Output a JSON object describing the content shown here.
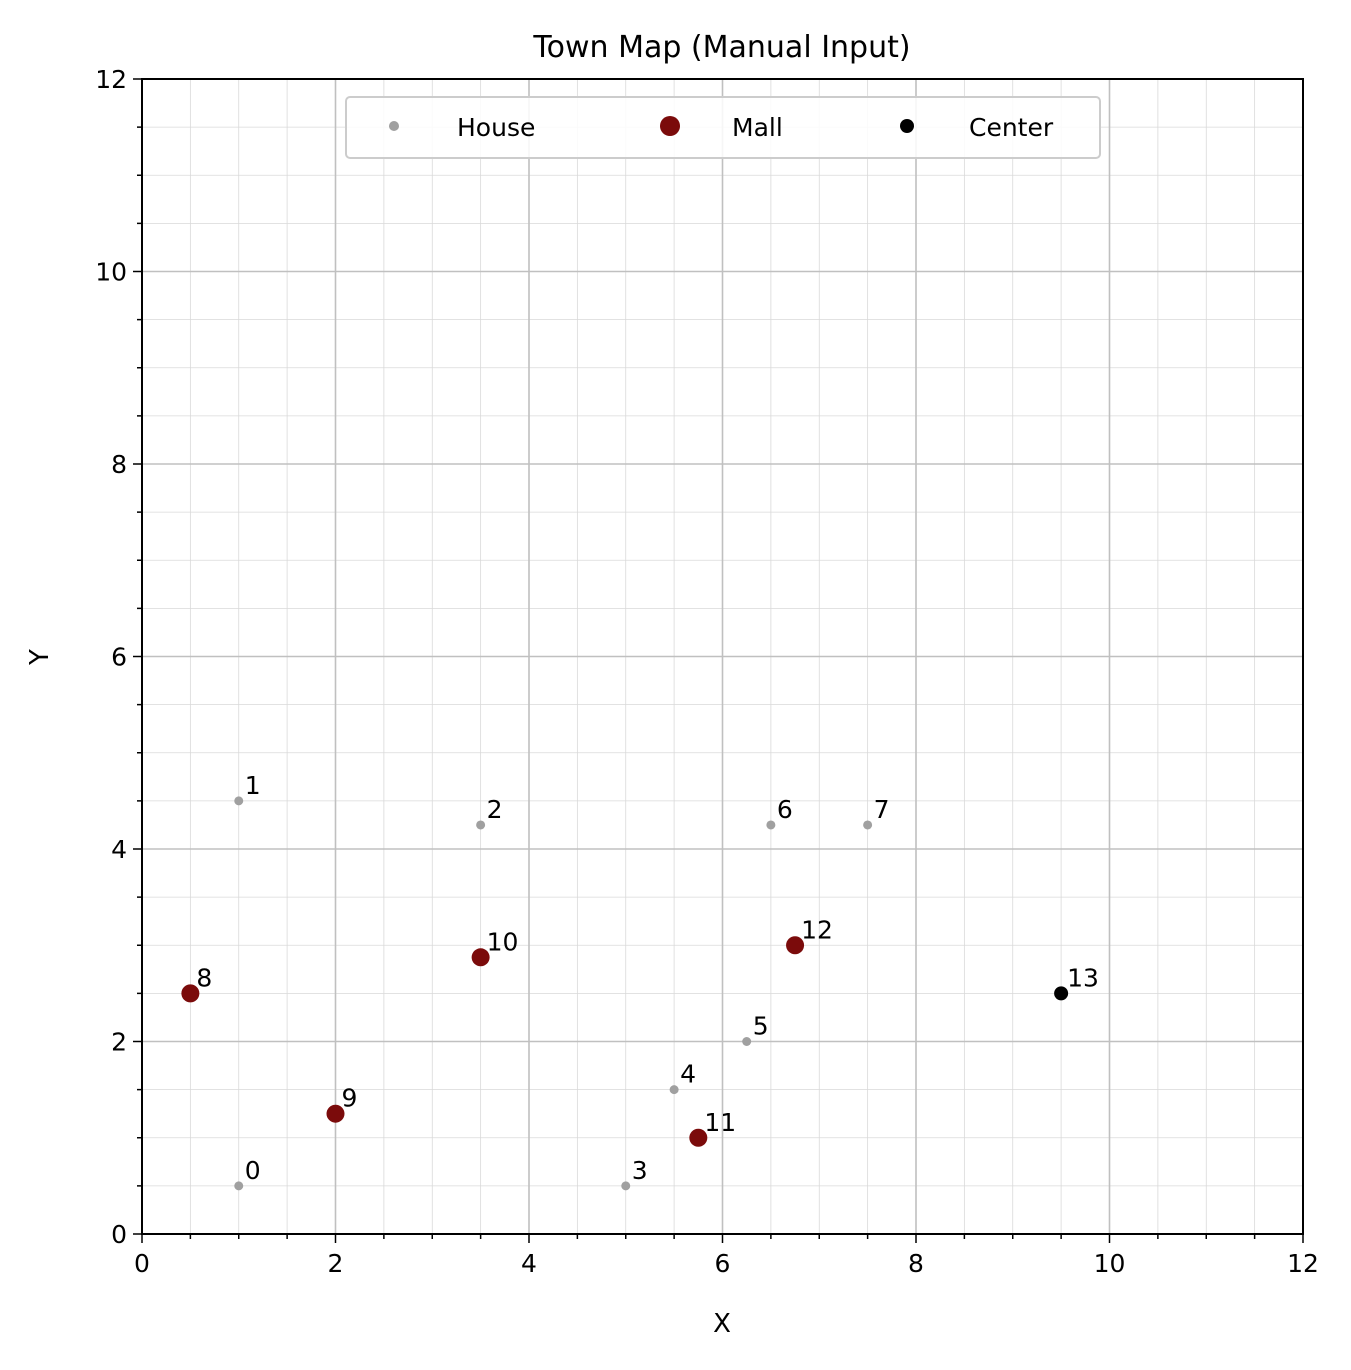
{
  "chart_data": {
    "type": "scatter",
    "title": "Town Map (Manual Input)",
    "xlabel": "X",
    "ylabel": "Y",
    "xlim": [
      0,
      12
    ],
    "ylim": [
      0,
      12
    ],
    "xticks": [
      0,
      2,
      4,
      6,
      8,
      10,
      12
    ],
    "yticks": [
      0,
      2,
      4,
      6,
      8,
      10,
      12
    ],
    "grid": "major and minor",
    "legend_position": "upper center",
    "legend": [
      {
        "label": "House",
        "color": "#a0a0a0",
        "marker": "small-dot"
      },
      {
        "label": "Mall",
        "color": "#7b0b0b",
        "marker": "large-dot"
      },
      {
        "label": "Center",
        "color": "#000000",
        "marker": "medium-dot"
      }
    ],
    "points": [
      {
        "id": "0",
        "type": "House",
        "x": 1.0,
        "y": 0.5
      },
      {
        "id": "1",
        "type": "House",
        "x": 1.0,
        "y": 4.5
      },
      {
        "id": "2",
        "type": "House",
        "x": 3.5,
        "y": 4.25
      },
      {
        "id": "3",
        "type": "House",
        "x": 5.0,
        "y": 0.5
      },
      {
        "id": "4",
        "type": "House",
        "x": 5.5,
        "y": 1.5
      },
      {
        "id": "5",
        "type": "House",
        "x": 6.25,
        "y": 2.0
      },
      {
        "id": "6",
        "type": "House",
        "x": 6.5,
        "y": 4.25
      },
      {
        "id": "7",
        "type": "House",
        "x": 7.5,
        "y": 4.25
      },
      {
        "id": "8",
        "type": "Mall",
        "x": 0.5,
        "y": 2.5
      },
      {
        "id": "9",
        "type": "Mall",
        "x": 2.0,
        "y": 1.25
      },
      {
        "id": "10",
        "type": "Mall",
        "x": 3.5,
        "y": 2.875
      },
      {
        "id": "11",
        "type": "Mall",
        "x": 5.75,
        "y": 1.0
      },
      {
        "id": "12",
        "type": "Mall",
        "x": 6.75,
        "y": 3.0
      },
      {
        "id": "13",
        "type": "Center",
        "x": 9.5,
        "y": 2.5
      }
    ]
  }
}
